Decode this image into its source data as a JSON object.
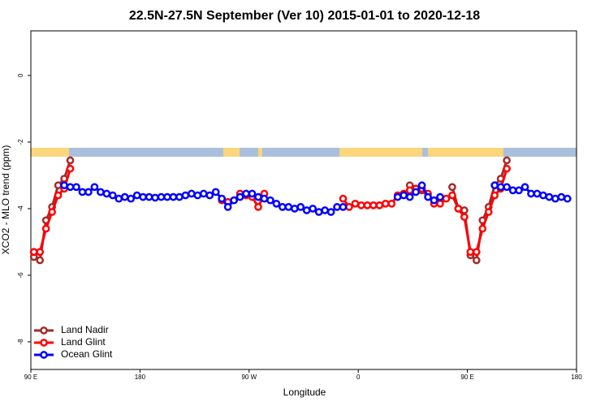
{
  "chart_data": {
    "type": "line",
    "title": "22.5N-27.5N September (Ver 10)   2015-01-01 to 2020-12-18",
    "x_label": "Longitude",
    "y_label": "XCO2 - MLO trend (ppm)",
    "xlim": [
      90,
      540
    ],
    "xticks": [
      {
        "value": 90,
        "label": "90 E"
      },
      180,
      {
        "value": 270,
        "label": "90 W"
      },
      {
        "value": 360,
        "label": "0"
      },
      {
        "value": 450,
        "label": "90 E"
      },
      {
        "value": 540,
        "label": "180"
      }
    ],
    "ylim": [
      -8.83,
      1.34
    ],
    "yticks": [
      -8,
      -6,
      -4,
      -2,
      0
    ],
    "legend": "bottom-left",
    "series": [
      {
        "name": "Land Nadir",
        "color": "#a52a2a",
        "x": [
          92.5,
          97.5,
          102.5,
          107.5,
          112.5,
          117.5,
          122.5,
          127.5,
          402.5,
          407.5,
          412.5,
          417.5,
          437.5,
          442.5,
          447.5,
          452.5,
          457.5,
          462.5,
          467.5,
          472.5,
          477.5,
          482.5
        ],
        "values": [
          -5.45,
          -5.55,
          -4.35,
          -3.95,
          -3.3,
          -3.1,
          -2.55,
          null,
          -3.3,
          -3.4,
          -3.45,
          null,
          -3.35,
          -4.0,
          -4.05,
          -5.4,
          -5.55,
          -4.35,
          -3.95,
          -3.3,
          -3.1,
          -2.55
        ]
      },
      {
        "name": "Land Glint",
        "color": "#ff0000",
        "x": [
          92.5,
          97.5,
          102.5,
          107.5,
          112.5,
          117.5,
          122.5,
          127.5,
          247.5,
          252.5,
          257.5,
          262.5,
          267.5,
          272.5,
          277.5,
          282.5,
          287.5,
          347.5,
          352.5,
          357.5,
          362.5,
          367.5,
          372.5,
          377.5,
          382.5,
          387.5,
          392.5,
          397.5,
          402.5,
          407.5,
          412.5,
          417.5,
          422.5,
          427.5,
          432.5,
          437.5,
          442.5,
          447.5,
          452.5,
          457.5,
          462.5,
          467.5,
          472.5,
          477.5,
          482.5
        ],
        "values": [
          -5.3,
          -5.3,
          -4.6,
          -4.1,
          -3.6,
          -3.4,
          -2.8,
          null,
          -3.75,
          -3.8,
          -3.75,
          -3.55,
          -3.6,
          -3.65,
          -3.95,
          -3.55,
          null,
          -3.7,
          -3.95,
          -3.85,
          -3.9,
          -3.9,
          -3.9,
          -3.9,
          -3.85,
          -3.85,
          -3.6,
          -3.55,
          -3.45,
          -3.4,
          -3.4,
          -3.55,
          -3.85,
          -3.85,
          -3.7,
          -3.6,
          -4.0,
          -4.25,
          -5.3,
          -5.3,
          -4.6,
          -4.1,
          -3.6,
          -3.4,
          -2.8
        ]
      },
      {
        "name": "Ocean Glint",
        "color": "#0000ff",
        "x": [
          117.5,
          122.5,
          127.5,
          132.5,
          137.5,
          142.5,
          147.5,
          152.5,
          157.5,
          162.5,
          167.5,
          172.5,
          177.5,
          182.5,
          187.5,
          192.5,
          197.5,
          202.5,
          207.5,
          212.5,
          217.5,
          222.5,
          227.5,
          232.5,
          237.5,
          242.5,
          247.5,
          252.5,
          257.5,
          262.5,
          267.5,
          272.5,
          277.5,
          282.5,
          287.5,
          292.5,
          297.5,
          302.5,
          307.5,
          312.5,
          317.5,
          322.5,
          327.5,
          332.5,
          337.5,
          342.5,
          347.5,
          370,
          392.5,
          397.5,
          402.5,
          407.5,
          412.5,
          417.5,
          422.5,
          427.5,
          450,
          472.5,
          477.5,
          482.5,
          487.5,
          492.5,
          497.5,
          502.5,
          507.5,
          512.5,
          517.5,
          522.5,
          527.5,
          532.5
        ],
        "values": [
          -3.3,
          -3.35,
          -3.35,
          -3.5,
          -3.5,
          -3.35,
          -3.5,
          -3.55,
          -3.6,
          -3.7,
          -3.65,
          -3.7,
          -3.6,
          -3.65,
          -3.65,
          -3.67,
          -3.65,
          -3.65,
          -3.65,
          -3.65,
          -3.6,
          -3.55,
          -3.6,
          -3.55,
          -3.6,
          -3.5,
          -3.7,
          -3.95,
          -3.75,
          -3.65,
          -3.55,
          -3.55,
          -3.65,
          -3.7,
          -3.75,
          -3.85,
          -3.95,
          -3.95,
          -4.0,
          -3.95,
          -4.05,
          -4.0,
          -4.1,
          -4.05,
          -4.1,
          -3.95,
          -3.95,
          null,
          -3.65,
          -3.6,
          -3.65,
          -3.5,
          -3.3,
          -3.65,
          -3.75,
          -3.65,
          null,
          -3.3,
          -3.35,
          -3.35,
          -3.45,
          -3.45,
          -3.35,
          -3.55,
          -3.55,
          -3.6,
          -3.65,
          -3.7,
          -3.65,
          -3.7
        ]
      }
    ]
  }
}
